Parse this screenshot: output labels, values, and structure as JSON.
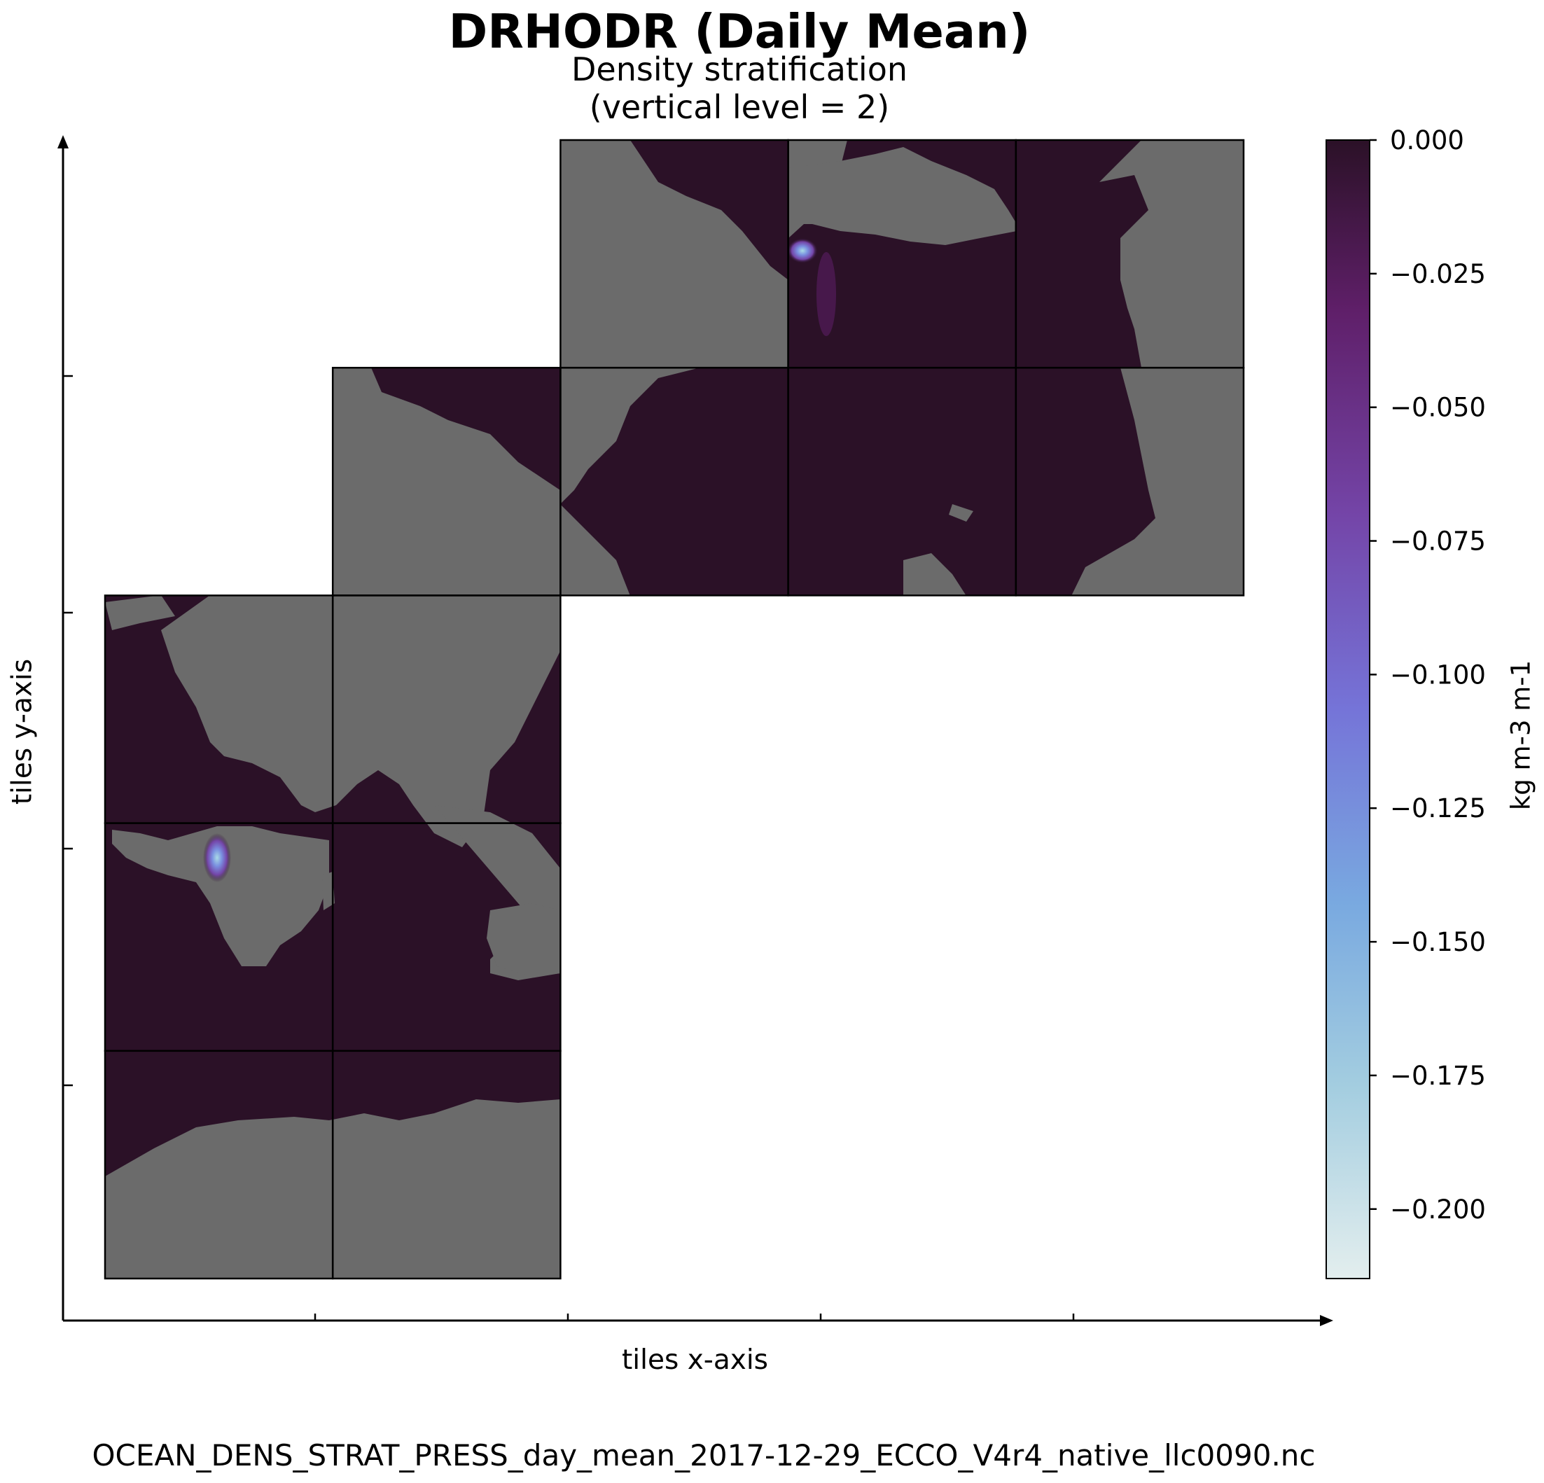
{
  "chart_data": {
    "type": "heatmap",
    "title": "DRHODR (Daily Mean)",
    "subtitle_lines": [
      "Density stratification",
      "(vertical level = 2)"
    ],
    "xlabel": "tiles x-axis",
    "ylabel": "tiles y-axis",
    "footer": "OCEAN_DENS_STRAT_PRESS_day_mean_2017-12-29_ECCO_V4r4_native_llc0090.nc",
    "colorbar": {
      "label": "kg m-3 m-1",
      "ticks": [
        0.0,
        -0.025,
        -0.05,
        -0.075,
        -0.1,
        -0.125,
        -0.15,
        -0.175,
        -0.2
      ],
      "tick_labels": [
        "0.000",
        "−0.025",
        "−0.050",
        "−0.075",
        "−0.100",
        "−0.125",
        "−0.150",
        "−0.175",
        "−0.200"
      ],
      "range": [
        -0.213,
        0.0
      ],
      "colormap": [
        "#e3eeee",
        "#a3cde0",
        "#79a9e0",
        "#7574d8",
        "#7445a8",
        "#5f1f69",
        "#2b1127"
      ]
    },
    "land_color": "#6b6b6b",
    "ocean_background_color": "#2b1127",
    "tiles_grid": {
      "columns": 5,
      "rows": 5,
      "present_tiles": [
        {
          "col": 0,
          "row": 0
        },
        {
          "col": 1,
          "row": 0
        },
        {
          "col": 0,
          "row": 1
        },
        {
          "col": 1,
          "row": 1
        },
        {
          "col": 0,
          "row": 2
        },
        {
          "col": 1,
          "row": 2
        },
        {
          "col": 1,
          "row": 3
        },
        {
          "col": 2,
          "row": 3
        },
        {
          "col": 3,
          "row": 3
        },
        {
          "col": 4,
          "row": 3
        },
        {
          "col": 2,
          "row": 4
        },
        {
          "col": 3,
          "row": 4
        },
        {
          "col": 4,
          "row": 4
        }
      ]
    },
    "minimum_hotspots_value": -0.13
  }
}
